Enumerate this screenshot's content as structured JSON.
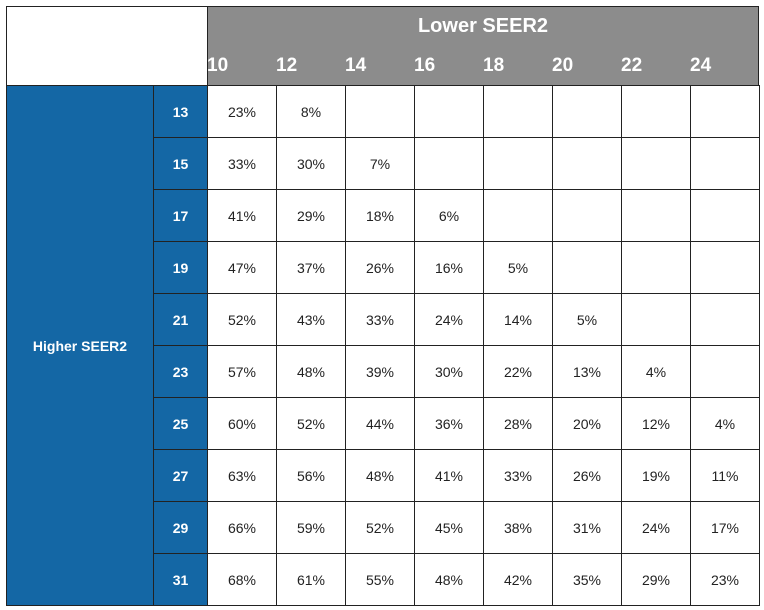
{
  "table": {
    "column_header": "Lower SEER2",
    "columns": [
      10,
      12,
      14,
      16,
      18,
      20,
      22,
      24
    ],
    "row_header": "Higher SEER2",
    "row_labels": [
      13,
      15,
      17,
      19,
      21,
      23,
      25,
      27,
      29,
      31
    ],
    "rows": [
      [
        "23%",
        "8%"
      ],
      [
        "33%",
        "30%",
        "7%"
      ],
      [
        "41%",
        "29%",
        "18%",
        "6%"
      ],
      [
        "47%",
        "37%",
        "26%",
        "16%",
        "5%"
      ],
      [
        "52%",
        "43%",
        "33%",
        "24%",
        "14%",
        "5%"
      ],
      [
        "57%",
        "48%",
        "39%",
        "30%",
        "22%",
        "13%",
        "4%"
      ],
      [
        "60%",
        "52%",
        "44%",
        "36%",
        "28%",
        "20%",
        "12%",
        "4%"
      ],
      [
        "63%",
        "56%",
        "48%",
        "41%",
        "33%",
        "26%",
        "19%",
        "11%"
      ],
      [
        "66%",
        "59%",
        "52%",
        "45%",
        "38%",
        "31%",
        "24%",
        "17%"
      ],
      [
        "68%",
        "61%",
        "55%",
        "48%",
        "42%",
        "35%",
        "29%",
        "23%"
      ]
    ]
  }
}
